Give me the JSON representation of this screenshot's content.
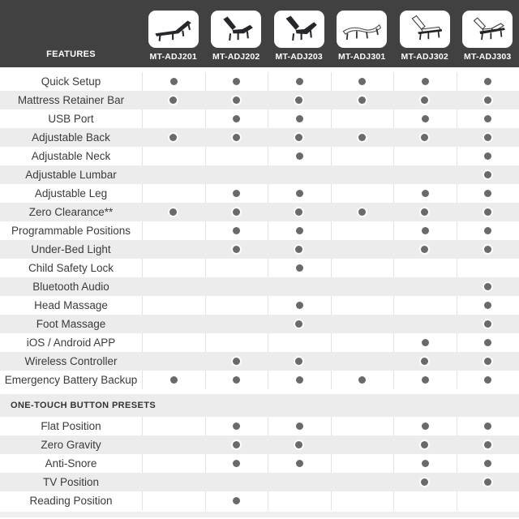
{
  "header": {
    "features_label": "FEATURES",
    "columns": [
      {
        "model": "MT-ADJ201",
        "icon": "bed-dark-flat-recliner-icon"
      },
      {
        "model": "MT-ADJ202",
        "icon": "bed-dark-head-raised-icon"
      },
      {
        "model": "MT-ADJ203",
        "icon": "bed-dark-head-foot-raised-icon"
      },
      {
        "model": "MT-ADJ301",
        "icon": "bed-light-flat-wave-icon"
      },
      {
        "model": "MT-ADJ302",
        "icon": "bed-light-head-raised-icon"
      },
      {
        "model": "MT-ADJ303",
        "icon": "bed-light-head-foot-raised-icon"
      }
    ]
  },
  "sections": [
    {
      "title": "",
      "rows": [
        {
          "label": "Quick Setup",
          "dots": [
            1,
            1,
            1,
            1,
            1,
            1
          ]
        },
        {
          "label": "Mattress Retainer Bar",
          "dots": [
            1,
            1,
            1,
            1,
            1,
            1
          ]
        },
        {
          "label": "USB Port",
          "dots": [
            0,
            1,
            1,
            0,
            1,
            1
          ]
        },
        {
          "label": "Adjustable Back",
          "dots": [
            1,
            1,
            1,
            1,
            1,
            1
          ]
        },
        {
          "label": "Adjustable Neck",
          "dots": [
            0,
            0,
            1,
            0,
            0,
            1
          ]
        },
        {
          "label": "Adjustable Lumbar",
          "dots": [
            0,
            0,
            0,
            0,
            0,
            1
          ]
        },
        {
          "label": "Adjustable Leg",
          "dots": [
            0,
            1,
            1,
            0,
            1,
            1
          ]
        },
        {
          "label": "Zero Clearance**",
          "dots": [
            1,
            1,
            1,
            1,
            1,
            1
          ]
        },
        {
          "label": "Programmable Positions",
          "dots": [
            0,
            1,
            1,
            0,
            1,
            1
          ]
        },
        {
          "label": "Under-Bed Light",
          "dots": [
            0,
            1,
            1,
            0,
            1,
            1
          ]
        },
        {
          "label": "Child Safety Lock",
          "dots": [
            0,
            0,
            1,
            0,
            0,
            0
          ]
        },
        {
          "label": "Bluetooth Audio",
          "dots": [
            0,
            0,
            0,
            0,
            0,
            1
          ]
        },
        {
          "label": "Head Massage",
          "dots": [
            0,
            0,
            1,
            0,
            0,
            1
          ]
        },
        {
          "label": "Foot Massage",
          "dots": [
            0,
            0,
            1,
            0,
            0,
            1
          ]
        },
        {
          "label": "iOS / Android APP",
          "dots": [
            0,
            0,
            0,
            0,
            1,
            1
          ]
        },
        {
          "label": "Wireless Controller",
          "dots": [
            0,
            1,
            1,
            0,
            1,
            1
          ]
        },
        {
          "label": "Emergency Battery Backup",
          "dots": [
            1,
            1,
            1,
            1,
            1,
            1
          ]
        }
      ]
    },
    {
      "title": "ONE-TOUCH BUTTON PRESETS",
      "rows": [
        {
          "label": "Flat Position",
          "dots": [
            0,
            1,
            1,
            0,
            1,
            1
          ]
        },
        {
          "label": "Zero Gravity",
          "dots": [
            0,
            1,
            1,
            0,
            1,
            1
          ]
        },
        {
          "label": "Anti-Snore",
          "dots": [
            0,
            1,
            1,
            0,
            1,
            1
          ]
        },
        {
          "label": "TV Position",
          "dots": [
            0,
            0,
            0,
            0,
            1,
            1
          ]
        },
        {
          "label": "Reading Position",
          "dots": [
            0,
            1,
            0,
            0,
            0,
            0
          ]
        }
      ]
    }
  ],
  "colors": {
    "header_bg": "#414141",
    "header_text": "#ffffff",
    "row_alt_bg": "#ececec",
    "dot": "#6a6a6a",
    "text": "#3b3b3b"
  }
}
